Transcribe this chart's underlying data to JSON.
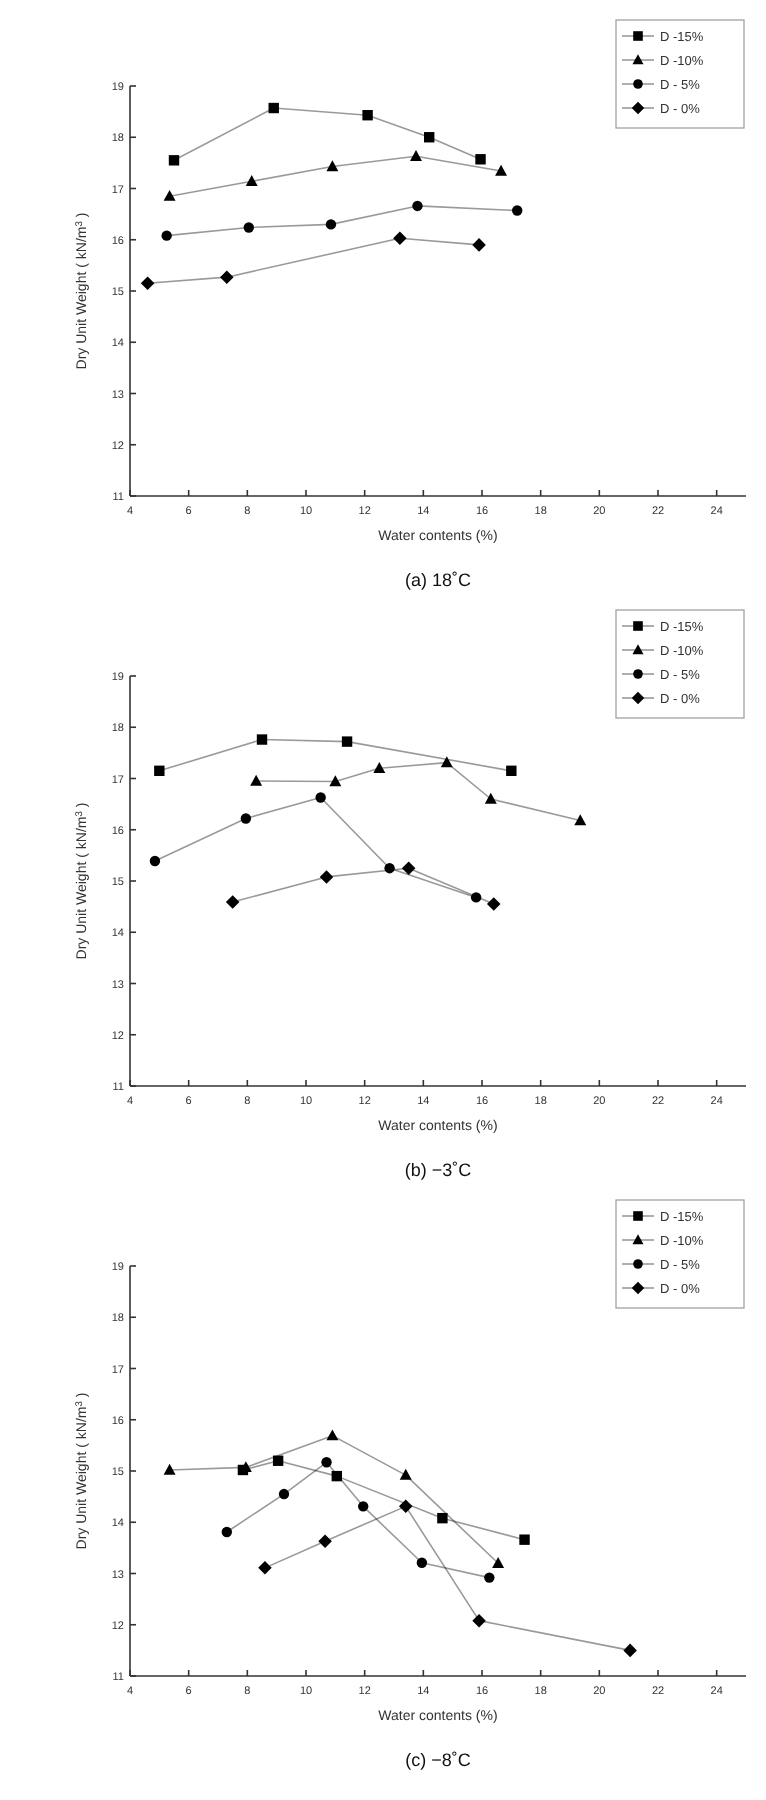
{
  "chart_data": [
    {
      "type": "line",
      "title": "(a) 18˚C",
      "xlabel": "Water contents (%)",
      "ylabel": "Dry Unit Weight ( kN/m$^{3}$ )",
      "xlim": [
        4,
        25
      ],
      "xticks": [
        4,
        6,
        8,
        10,
        12,
        14,
        16,
        18,
        20,
        22,
        24
      ],
      "ylim": [
        11,
        19
      ],
      "yticks": [
        11,
        12,
        13,
        14,
        15,
        16,
        17,
        18,
        19
      ],
      "grid": false,
      "legend": "top right",
      "series": [
        {
          "name": "D -15%",
          "color": "#000000",
          "marker": "square",
          "x": [
            5.5,
            8.9,
            12.1,
            14.2,
            15.95
          ],
          "values": [
            17.55,
            18.57,
            18.43,
            18.0,
            17.57
          ]
        },
        {
          "name": "D -10%",
          "color": "#000000",
          "marker": "triangle",
          "x": [
            5.35,
            8.15,
            10.9,
            13.75,
            16.65
          ],
          "values": [
            16.85,
            17.14,
            17.43,
            17.63,
            17.34
          ]
        },
        {
          "name": "D - 5%",
          "color": "#000000",
          "marker": "circle",
          "x": [
            5.25,
            8.05,
            10.85,
            13.8,
            17.2
          ],
          "values": [
            16.08,
            16.24,
            16.3,
            16.66,
            16.57
          ]
        },
        {
          "name": "D - 0%",
          "color": "#000000",
          "marker": "diamond",
          "x": [
            4.6,
            7.3,
            13.2,
            15.9
          ],
          "values": [
            15.15,
            15.27,
            16.03,
            15.9
          ]
        }
      ]
    },
    {
      "type": "line",
      "title": "(b) −3˚C",
      "xlabel": "Water contents (%)",
      "ylabel": "Dry Unit Weight ( kN/m$^{3}$ )",
      "xlim": [
        4,
        25
      ],
      "xticks": [
        4,
        6,
        8,
        10,
        12,
        14,
        16,
        18,
        20,
        22,
        24
      ],
      "ylim": [
        11,
        19
      ],
      "yticks": [
        11,
        12,
        13,
        14,
        15,
        16,
        17,
        18,
        19
      ],
      "grid": false,
      "legend": "top right",
      "series": [
        {
          "name": "D -15%",
          "color": "#000000",
          "marker": "square",
          "x": [
            5.0,
            8.5,
            11.4,
            17.0
          ],
          "values": [
            17.15,
            17.76,
            17.72,
            17.15
          ]
        },
        {
          "name": "D -10%",
          "color": "#000000",
          "marker": "triangle",
          "x": [
            8.3,
            11.0,
            12.5,
            14.8,
            16.3,
            19.35
          ],
          "values": [
            16.95,
            16.94,
            17.2,
            17.31,
            16.6,
            16.18
          ]
        },
        {
          "name": "D - 5%",
          "color": "#000000",
          "marker": "circle",
          "x": [
            4.85,
            7.95,
            10.5,
            12.85,
            15.8
          ],
          "values": [
            15.39,
            16.22,
            16.63,
            15.25,
            14.68
          ]
        },
        {
          "name": "D - 0%",
          "color": "#000000",
          "marker": "diamond",
          "x": [
            7.5,
            10.7,
            13.5,
            16.4
          ],
          "values": [
            14.59,
            15.08,
            15.25,
            14.55
          ]
        }
      ]
    },
    {
      "type": "line",
      "title": "(c) −8˚C",
      "xlabel": "Water contents (%)",
      "ylabel": "Dry Unit Weight ( kN/m$^{3}$ )",
      "xlim": [
        4,
        25
      ],
      "xticks": [
        4,
        6,
        8,
        10,
        12,
        14,
        16,
        18,
        20,
        22,
        24
      ],
      "ylim": [
        11,
        19
      ],
      "yticks": [
        11,
        12,
        13,
        14,
        15,
        16,
        17,
        18,
        19
      ],
      "grid": false,
      "legend": "top right",
      "series": [
        {
          "name": "D -15%",
          "color": "#000000",
          "marker": "square",
          "x": [
            7.85,
            9.05,
            11.05,
            14.65,
            17.45
          ],
          "values": [
            15.02,
            15.2,
            14.9,
            14.08,
            13.66
          ]
        },
        {
          "name": "D -10%",
          "color": "#000000",
          "marker": "triangle",
          "x": [
            5.35,
            7.95,
            10.9,
            13.4,
            16.55
          ],
          "values": [
            15.02,
            15.07,
            15.69,
            14.92,
            13.2
          ]
        },
        {
          "name": "D - 5%",
          "color": "#000000",
          "marker": "circle",
          "x": [
            7.3,
            9.25,
            10.7,
            11.95,
            13.95,
            16.25
          ],
          "values": [
            13.81,
            14.55,
            15.17,
            14.31,
            13.21,
            12.92
          ]
        },
        {
          "name": "D - 0%",
          "color": "#000000",
          "marker": "diamond",
          "x": [
            8.6,
            10.65,
            13.4,
            15.9,
            21.05
          ],
          "values": [
            13.11,
            13.63,
            14.31,
            12.08,
            11.5
          ]
        }
      ]
    }
  ]
}
